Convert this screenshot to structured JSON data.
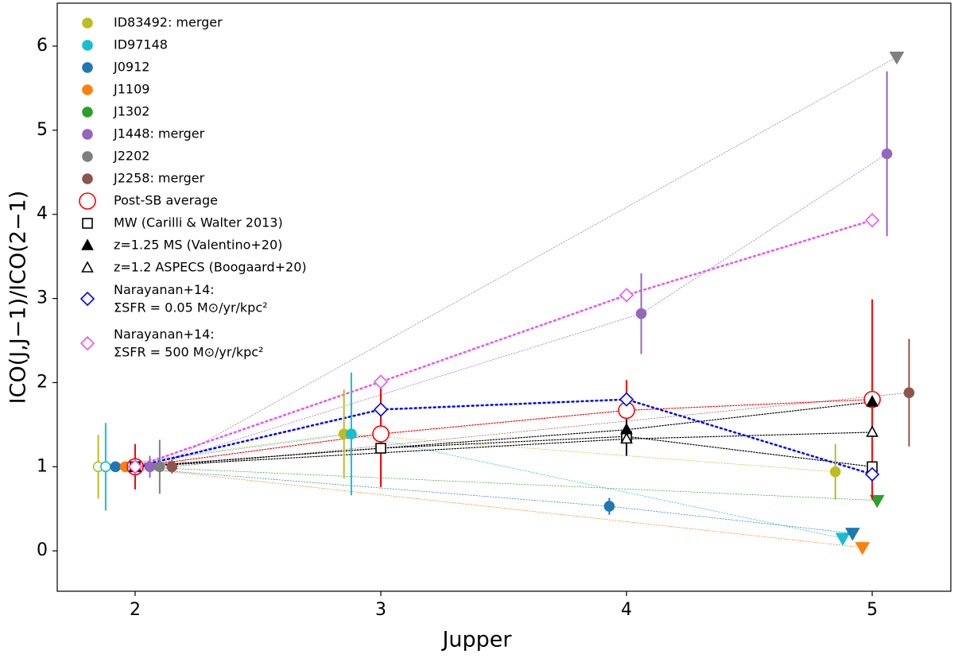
{
  "chart_data": {
    "type": "scatter",
    "x_label": "Jupper",
    "y_label": "ICO(J,J−1)/ICO(2−1)",
    "xlim": [
      1.683,
      5.32
    ],
    "ylim": [
      -0.48,
      6.51
    ],
    "xticks": [
      2,
      3,
      4,
      5
    ],
    "yticks": [
      0,
      1,
      2,
      3,
      4,
      5,
      6
    ],
    "legend": "upper left",
    "series": [
      {
        "name": "ID83492: merger",
        "color": "#bcbd22",
        "x": [
          1.85,
          2.85,
          4.85
        ],
        "values": [
          1,
          1.39,
          0.94
        ],
        "errors": [
          0.38,
          0.53,
          0.33
        ],
        "markers": [
          "circle",
          "circle",
          "circle"
        ],
        "hollow": [
          true,
          false,
          false
        ],
        "linewidth": 0.7
      },
      {
        "name": "ID97148",
        "color": "#17becf",
        "x": [
          1.88,
          2.88,
          4.88
        ],
        "values": [
          1,
          1.39,
          0.15
        ],
        "errors": [
          0.52,
          0.73,
          null
        ],
        "markers": [
          "circle",
          "circle",
          "triangle-down"
        ],
        "hollow": [
          true,
          false,
          false
        ],
        "linewidth": 0.7
      },
      {
        "name": "J0912",
        "color": "#1f77b4",
        "x": [
          1.92,
          3.93,
          4.92
        ],
        "values": [
          1,
          0.53,
          0.21
        ],
        "errors": [
          0.05,
          0.1,
          null
        ],
        "markers": [
          "circle",
          "circle",
          "triangle-down"
        ],
        "hollow": [
          false,
          false,
          false
        ],
        "linewidth": 0.7
      },
      {
        "name": "J1109",
        "color": "#ff7f0e",
        "x": [
          1.96,
          4.96
        ],
        "values": [
          1,
          0.04
        ],
        "errors": [
          0.05,
          null
        ],
        "markers": [
          "circle",
          "triangle-down"
        ],
        "hollow": [
          false,
          false
        ],
        "linewidth": 0.7
      },
      {
        "name": "J1302",
        "color": "#2ca02c",
        "x": [
          2.0,
          5.02
        ],
        "values": [
          1,
          0.6
        ],
        "errors": [
          0.05,
          null
        ],
        "markers": [
          "circle",
          "triangle-down"
        ],
        "hollow": [
          false,
          false
        ],
        "linewidth": 0.7
      },
      {
        "name": "J1448: merger",
        "color": "#9467bd",
        "x": [
          2.06,
          4.06,
          5.06
        ],
        "values": [
          1,
          2.82,
          4.72
        ],
        "errors": [
          0.13,
          0.48,
          0.98
        ],
        "markers": [
          "circle",
          "circle",
          "circle"
        ],
        "hollow": [
          false,
          false,
          false
        ],
        "linewidth": 0.7
      },
      {
        "name": "J2202",
        "color": "#7f7f7f",
        "x": [
          2.1,
          5.1
        ],
        "values": [
          1,
          5.87
        ],
        "errors": [
          0.32,
          null
        ],
        "markers": [
          "circle",
          "triangle-down"
        ],
        "hollow": [
          false,
          false
        ],
        "linewidth": 0.7
      },
      {
        "name": "J2258: merger",
        "color": "#8c564b",
        "x": [
          2.15,
          5.15
        ],
        "values": [
          1,
          1.88
        ],
        "errors": [
          0.08,
          0.64
        ],
        "markers": [
          "circle",
          "circle"
        ],
        "hollow": [
          false,
          false
        ],
        "linewidth": 0.7
      },
      {
        "name": "Post-SB average",
        "color": "#ff0000",
        "x": [
          2,
          3,
          4,
          5
        ],
        "values": [
          1,
          1.39,
          1.67,
          1.8
        ],
        "errors": [
          0.27,
          0.63,
          0.36,
          1.19
        ],
        "markers": [
          "circle-large",
          "circle-large",
          "circle-large",
          "circle-large"
        ],
        "hollow": [
          true,
          true,
          true,
          true
        ],
        "linewidth": 1.2
      },
      {
        "name": "MW (Carilli & Walter 2013)",
        "color": "#000000",
        "x": [
          2,
          3,
          4,
          5
        ],
        "values": [
          1,
          1.22,
          1.36,
          1.0
        ],
        "errors": [
          null,
          null,
          null,
          null
        ],
        "markers": [
          "square",
          "square",
          "square",
          "square"
        ],
        "hollow": [
          true,
          true,
          true,
          true
        ],
        "linewidth": 1.2
      },
      {
        "name": "z=1.25 MS (Valentino+20)",
        "color": "#000000",
        "x": [
          2,
          4,
          5
        ],
        "values": [
          1,
          1.44,
          1.77
        ],
        "errors": [
          null,
          0.12,
          null
        ],
        "markers": [
          "triangle-up",
          "triangle-up",
          "triangle-up"
        ],
        "hollow": [
          false,
          false,
          false
        ],
        "linewidth": 1.2
      },
      {
        "name": "z=1.2 ASPECS (Boogaard+20)",
        "color": "#000000",
        "x": [
          2,
          4,
          5
        ],
        "values": [
          1,
          1.33,
          1.41
        ],
        "errors": [
          null,
          0.2,
          null
        ],
        "markers": [
          "triangle-up",
          "triangle-up",
          "triangle-up"
        ],
        "hollow": [
          true,
          true,
          true
        ],
        "linewidth": 1.2
      },
      {
        "name": "Narayanan+14:\nΣSFR = 0.05 M⊙/yr/kpc²",
        "color": "#0000ff",
        "x": [
          2,
          3,
          4,
          5
        ],
        "values": [
          1,
          1.68,
          1.8,
          0.91
        ],
        "errors": [
          null,
          null,
          null,
          null
        ],
        "markers": [
          "diamond",
          "diamond",
          "diamond",
          "diamond"
        ],
        "hollow": [
          true,
          true,
          true,
          true
        ],
        "linewidth": 2.5
      },
      {
        "name": "Narayanan+14:\nΣSFR = 500 M⊙/yr/kpc²",
        "color": "#ee55ee",
        "x": [
          2,
          3,
          4,
          5
        ],
        "values": [
          1,
          2.01,
          3.04,
          3.93
        ],
        "errors": [
          null,
          null,
          null,
          null
        ],
        "markers": [
          "diamond",
          "diamond",
          "diamond",
          "diamond"
        ],
        "hollow": [
          true,
          true,
          true,
          true
        ],
        "linewidth": 2.5
      }
    ]
  }
}
